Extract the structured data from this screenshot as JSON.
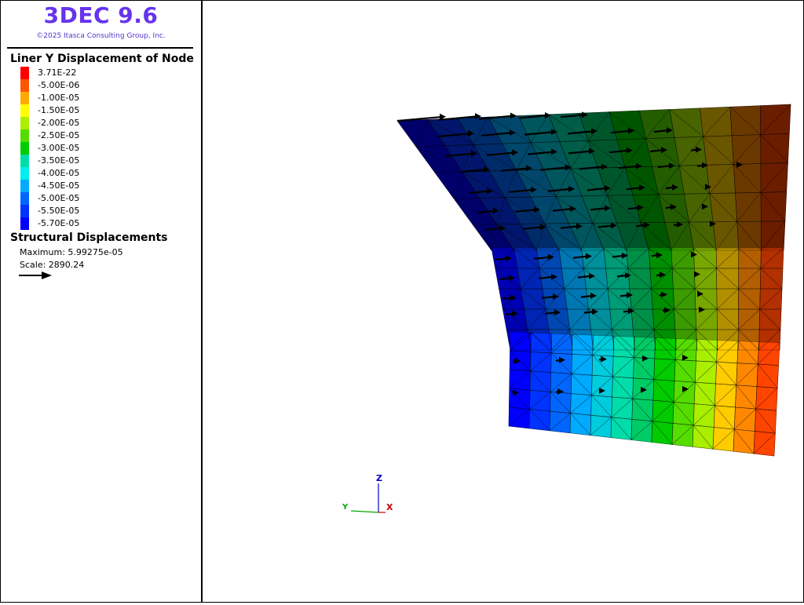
{
  "app": {
    "title": "3DEC 9.6",
    "copyright": "©2025 Itasca Consulting Group, Inc."
  },
  "contour_legend": {
    "title": "Liner Y Displacement of Node",
    "entries": [
      {
        "label": "3.71E-22",
        "color": "#ff0000"
      },
      {
        "label": "-5.00E-06",
        "color": "#ff5500"
      },
      {
        "label": "-1.00E-05",
        "color": "#ffaa00"
      },
      {
        "label": "-1.50E-05",
        "color": "#ffff00"
      },
      {
        "label": "-2.00E-05",
        "color": "#aaee00"
      },
      {
        "label": "-2.50E-05",
        "color": "#55dd00"
      },
      {
        "label": "-3.00E-05",
        "color": "#00cc00"
      },
      {
        "label": "-3.50E-05",
        "color": "#00ddaa"
      },
      {
        "label": "-4.00E-05",
        "color": "#00eeee"
      },
      {
        "label": "-4.50E-05",
        "color": "#00aaff"
      },
      {
        "label": "-5.00E-05",
        "color": "#0066ff"
      },
      {
        "label": "-5.50E-05",
        "color": "#0033ff"
      },
      {
        "label": "-5.70E-05",
        "color": "#0000ff"
      }
    ]
  },
  "displacements": {
    "title": "Structural Displacements",
    "maximum": "Maximum: 5.99275e-05",
    "scale": "Scale: 2890.24"
  },
  "axes": {
    "z": "Z",
    "y": "Y",
    "x": "X"
  }
}
